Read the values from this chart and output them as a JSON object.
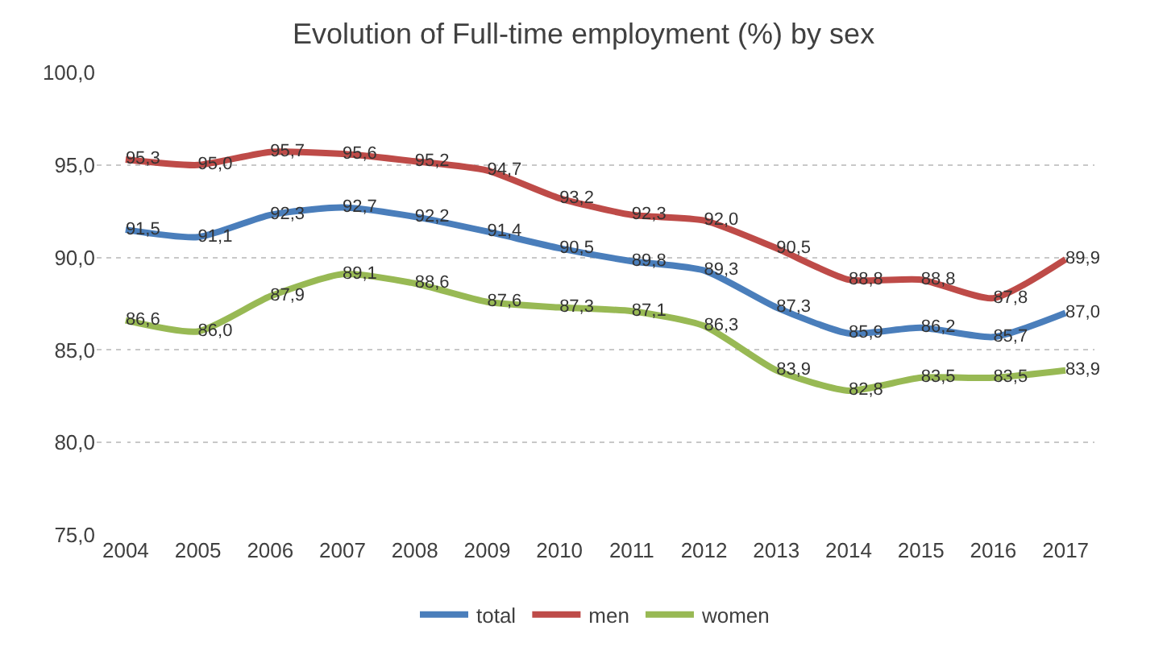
{
  "chart_data": {
    "type": "line",
    "title": "Evolution of Full-time employment (%) by sex",
    "categories": [
      "2004",
      "2005",
      "2006",
      "2007",
      "2008",
      "2009",
      "2010",
      "2011",
      "2012",
      "2013",
      "2014",
      "2015",
      "2016",
      "2017"
    ],
    "series": [
      {
        "name": "total",
        "color": "#4a7ebb",
        "values": [
          91.5,
          91.1,
          92.3,
          92.7,
          92.2,
          91.4,
          90.5,
          89.8,
          89.3,
          87.3,
          85.9,
          86.2,
          85.7,
          87.0
        ],
        "value_labels": [
          "91,5",
          "91,1",
          "92,3",
          "92,7",
          "92,2",
          "91,4",
          "90,5",
          "89,8",
          "89,3",
          "87,3",
          "85,9",
          "86,2",
          "85,7",
          "87,0"
        ]
      },
      {
        "name": "men",
        "color": "#be4b48",
        "values": [
          95.3,
          95.0,
          95.7,
          95.6,
          95.2,
          94.7,
          93.2,
          92.3,
          92.0,
          90.5,
          88.8,
          88.8,
          87.8,
          89.9
        ],
        "value_labels": [
          "95,3",
          "95,0",
          "95,7",
          "95,6",
          "95,2",
          "94,7",
          "93,2",
          "92,3",
          "92,0",
          "90,5",
          "88,8",
          "88,8",
          "87,8",
          "89,9"
        ]
      },
      {
        "name": "women",
        "color": "#98b954",
        "values": [
          86.6,
          86.0,
          87.9,
          89.1,
          88.6,
          87.6,
          87.3,
          87.1,
          86.3,
          83.9,
          82.8,
          83.5,
          83.5,
          83.9
        ],
        "value_labels": [
          "86,6",
          "86,0",
          "87,9",
          "89,1",
          "88,6",
          "87,6",
          "87,3",
          "87,1",
          "86,3",
          "83,9",
          "82,8",
          "83,5",
          "83,5",
          "83,9"
        ]
      }
    ],
    "ylim": [
      75,
      100
    ],
    "yticks": [
      {
        "value": 75,
        "label": "75,0"
      },
      {
        "value": 80,
        "label": "80,0"
      },
      {
        "value": 85,
        "label": "85,0"
      },
      {
        "value": 90,
        "label": "90,0"
      },
      {
        "value": 95,
        "label": "95,0"
      },
      {
        "value": 100,
        "label": "100,0"
      }
    ],
    "grid": "y",
    "legend": "bottom",
    "marker": "none",
    "line_style": "solid"
  }
}
